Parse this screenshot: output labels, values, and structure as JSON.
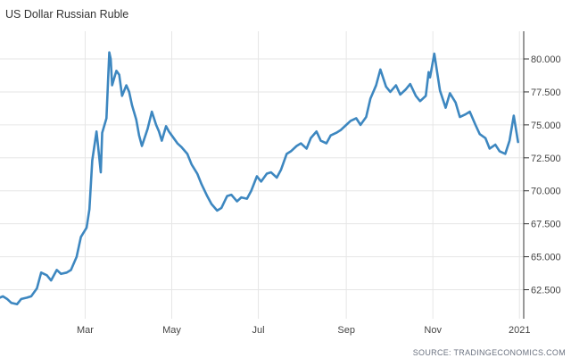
{
  "title": "US Dollar Russian Ruble",
  "source": "SOURCE: TRADINGECONOMICS.COM",
  "chart_data": {
    "type": "line",
    "title": "US Dollar Russian Ruble",
    "xlabel": "",
    "ylabel": "",
    "ylim": [
      60.3,
      82.1
    ],
    "y_ticks": [
      62.5,
      65.0,
      67.5,
      70.0,
      72.5,
      75.0,
      77.5,
      80.0
    ],
    "y_tick_labels": [
      "62.500",
      "65.000",
      "67.500",
      "70.000",
      "72.500",
      "75.000",
      "77.500",
      "80.000"
    ],
    "x_ticks": [
      "2020-03-01",
      "2020-05-01",
      "2020-07-01",
      "2020-09-01",
      "2020-11-01",
      "2021-01-01"
    ],
    "x_tick_labels": [
      "Mar",
      "May",
      "Jul",
      "Sep",
      "Nov",
      "2021"
    ],
    "xlim": [
      "2020-01-01",
      "2021-01-04"
    ],
    "grid": true,
    "line_color": "#3d87c0",
    "series": [
      {
        "dates": [
          "2020-01-01",
          "2020-01-03",
          "2020-01-06",
          "2020-01-09",
          "2020-01-13",
          "2020-01-16",
          "2020-01-20",
          "2020-01-23",
          "2020-01-27",
          "2020-01-30",
          "2020-02-03",
          "2020-02-06",
          "2020-02-10",
          "2020-02-13",
          "2020-02-17",
          "2020-02-20",
          "2020-02-24",
          "2020-02-27",
          "2020-03-02",
          "2020-03-04",
          "2020-03-06",
          "2020-03-09",
          "2020-03-10",
          "2020-03-12",
          "2020-03-13",
          "2020-03-16",
          "2020-03-18",
          "2020-03-19",
          "2020-03-20",
          "2020-03-23",
          "2020-03-25",
          "2020-03-27",
          "2020-03-30",
          "2020-04-01",
          "2020-04-03",
          "2020-04-06",
          "2020-04-08",
          "2020-04-10",
          "2020-04-14",
          "2020-04-17",
          "2020-04-20",
          "2020-04-22",
          "2020-04-24",
          "2020-04-27",
          "2020-04-29",
          "2020-05-01",
          "2020-05-05",
          "2020-05-08",
          "2020-05-12",
          "2020-05-15",
          "2020-05-19",
          "2020-05-22",
          "2020-05-26",
          "2020-05-29",
          "2020-06-02",
          "2020-06-05",
          "2020-06-09",
          "2020-06-12",
          "2020-06-16",
          "2020-06-19",
          "2020-06-23",
          "2020-06-26",
          "2020-06-30",
          "2020-07-03",
          "2020-07-07",
          "2020-07-10",
          "2020-07-14",
          "2020-07-17",
          "2020-07-21",
          "2020-07-24",
          "2020-07-28",
          "2020-07-31",
          "2020-08-04",
          "2020-08-07",
          "2020-08-11",
          "2020-08-14",
          "2020-08-18",
          "2020-08-21",
          "2020-08-25",
          "2020-08-28",
          "2020-09-01",
          "2020-09-04",
          "2020-09-08",
          "2020-09-11",
          "2020-09-15",
          "2020-09-18",
          "2020-09-22",
          "2020-09-25",
          "2020-09-29",
          "2020-10-02",
          "2020-10-06",
          "2020-10-09",
          "2020-10-13",
          "2020-10-16",
          "2020-10-20",
          "2020-10-23",
          "2020-10-27",
          "2020-10-29",
          "2020-10-30",
          "2020-11-02",
          "2020-11-04",
          "2020-11-06",
          "2020-11-10",
          "2020-11-13",
          "2020-11-17",
          "2020-11-20",
          "2020-11-24",
          "2020-11-27",
          "2020-12-01",
          "2020-12-04",
          "2020-12-08",
          "2020-12-11",
          "2020-12-15",
          "2020-12-18",
          "2020-12-22",
          "2020-12-25",
          "2020-12-28",
          "2020-12-31"
        ],
        "values": [
          61.9,
          62.0,
          61.8,
          61.5,
          61.4,
          61.8,
          61.9,
          62.0,
          62.6,
          63.8,
          63.6,
          63.2,
          64.0,
          63.7,
          63.8,
          64.0,
          65.0,
          66.5,
          67.2,
          68.6,
          72.3,
          74.5,
          73.5,
          71.4,
          74.4,
          75.5,
          80.5,
          80.0,
          78.0,
          79.1,
          78.8,
          77.2,
          78.0,
          77.5,
          76.5,
          75.4,
          74.2,
          73.4,
          74.7,
          76.0,
          75.0,
          74.5,
          73.8,
          74.9,
          74.5,
          74.2,
          73.6,
          73.3,
          72.8,
          72.0,
          71.3,
          70.5,
          69.6,
          69.0,
          68.5,
          68.7,
          69.6,
          69.7,
          69.2,
          69.5,
          69.4,
          70.0,
          71.1,
          70.7,
          71.3,
          71.4,
          71.0,
          71.6,
          72.8,
          73.0,
          73.4,
          73.6,
          73.2,
          74.0,
          74.5,
          73.8,
          73.6,
          74.2,
          74.4,
          74.6,
          75.0,
          75.3,
          75.5,
          75.0,
          75.6,
          77.0,
          78.0,
          79.2,
          77.9,
          77.5,
          78.0,
          77.3,
          77.7,
          78.1,
          77.2,
          76.8,
          77.2,
          79.0,
          78.6,
          80.4,
          79.0,
          77.6,
          76.3,
          77.4,
          76.7,
          75.6,
          75.8,
          76.0,
          75.0,
          74.3,
          74.0,
          73.2,
          73.5,
          73.0,
          72.8,
          73.8,
          75.7,
          73.7
        ]
      }
    ]
  }
}
